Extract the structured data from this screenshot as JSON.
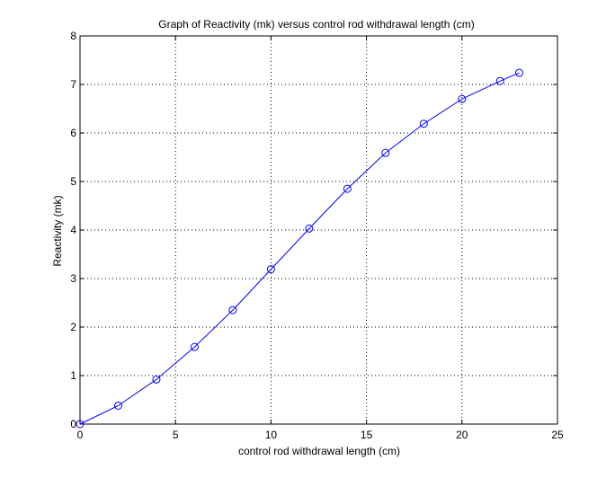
{
  "chart_data": {
    "type": "line",
    "title": "Graph of Reactivity (mk) versus control rod withdrawal length (cm)",
    "xlabel": "control rod withdrawal length (cm)",
    "ylabel": "Reactivity (mk)",
    "xlim": [
      0,
      25
    ],
    "ylim": [
      0,
      8
    ],
    "xticks": [
      0,
      5,
      10,
      15,
      20,
      25
    ],
    "yticks": [
      0,
      1,
      2,
      3,
      4,
      5,
      6,
      7,
      8
    ],
    "grid": true,
    "marker": "circle",
    "line_color": "#0000ff",
    "series": [
      {
        "x": [
          0,
          2,
          4,
          6,
          8,
          10,
          12,
          14,
          16,
          18,
          20,
          22,
          23
        ],
        "values": [
          0.0,
          0.38,
          0.92,
          1.59,
          2.35,
          3.19,
          4.03,
          4.85,
          5.59,
          6.19,
          6.7,
          7.07,
          7.24
        ]
      }
    ]
  }
}
